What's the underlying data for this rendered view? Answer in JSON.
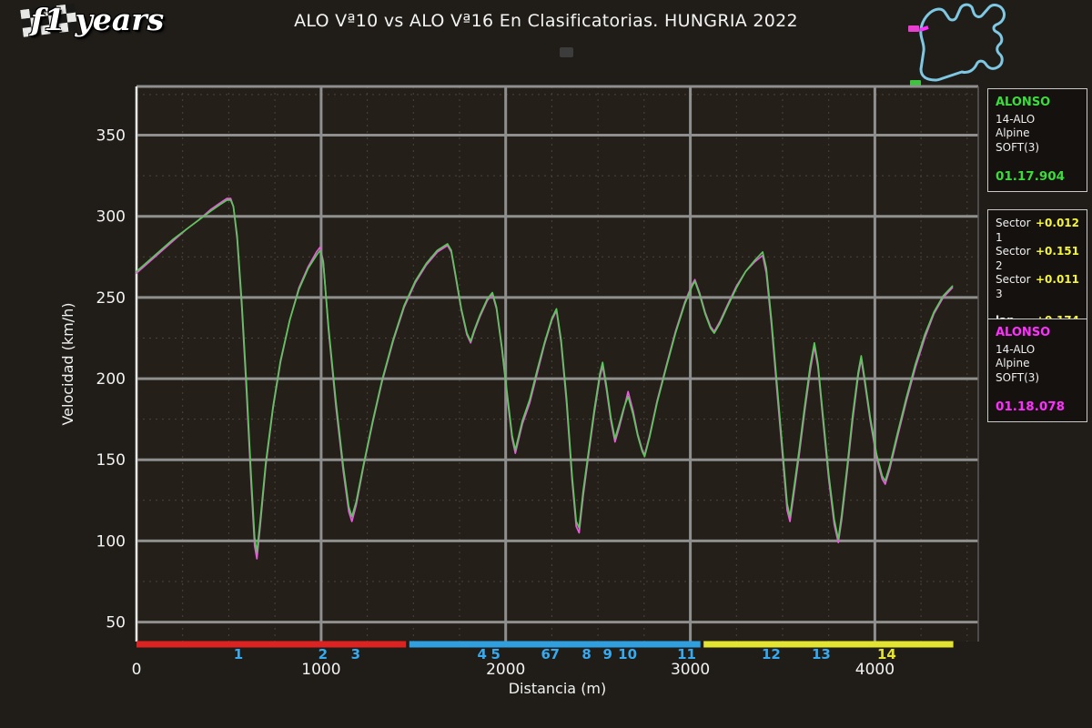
{
  "header": {
    "logo_text": "f1 years",
    "title": "ALO Vª10 vs ALO Vª16 En Clasificatorias. HUNGRIA 2022"
  },
  "track_map": {
    "outline_color": "#7ec8e3",
    "start_marker_color": "#ff30ff",
    "marker_top_color": "#e83fd0",
    "marker_bottom_color": "#3fc43f"
  },
  "panels": {
    "driver1": {
      "name": "ALONSO",
      "number": "14-ALO",
      "team": "Alpine",
      "tyre": "SOFT(3)",
      "time": "01.17.904",
      "color": "#3ddc3d"
    },
    "deltas": {
      "rows": [
        {
          "label": "Sector 1",
          "value": "+0.012"
        },
        {
          "label": "Sector 2",
          "value": "+0.151"
        },
        {
          "label": "Sector 3",
          "value": "+0.011"
        }
      ],
      "lap_label": "lap",
      "lap_value": "+0.174",
      "value_color": "#f5f53a"
    },
    "driver2": {
      "name": "ALONSO",
      "number": "14-ALO",
      "team": "Alpine",
      "tyre": "SOFT(3)",
      "time": "01.18.078",
      "color": "#ff30ff"
    }
  },
  "chart_data": {
    "type": "line",
    "title": "ALO Vª10 vs ALO Vª16 En Clasificatorias. HUNGRIA 2022",
    "xlabel": "Distancia (m)",
    "ylabel": "Velocidad (km/h)",
    "xlim": [
      0,
      4560
    ],
    "ylim": [
      38,
      380
    ],
    "xticks": [
      0,
      1000,
      2000,
      3000,
      4000
    ],
    "yticks": [
      50,
      100,
      150,
      200,
      250,
      300,
      350
    ],
    "minor_x_step": 250,
    "minor_y_step": 25,
    "plot_bg": "#242019",
    "grid_major_color": "#8f8f8f",
    "grid_minor_color": "#49443d",
    "tick_color": "#f2f2f2",
    "spine_color": "#e8e8e8",
    "series": [
      {
        "name": "ALONSO 01.17.904 (SOFT 3)",
        "color": "#57c957",
        "points": [
          [
            0,
            266
          ],
          [
            60,
            272
          ],
          [
            130,
            279
          ],
          [
            200,
            286
          ],
          [
            270,
            292
          ],
          [
            340,
            298
          ],
          [
            400,
            303
          ],
          [
            450,
            307
          ],
          [
            490,
            310
          ],
          [
            510,
            310
          ],
          [
            525,
            306
          ],
          [
            545,
            288
          ],
          [
            570,
            248
          ],
          [
            595,
            198
          ],
          [
            620,
            142
          ],
          [
            640,
            102
          ],
          [
            652,
            93
          ],
          [
            670,
            112
          ],
          [
            700,
            148
          ],
          [
            740,
            183
          ],
          [
            780,
            211
          ],
          [
            830,
            236
          ],
          [
            880,
            255
          ],
          [
            930,
            268
          ],
          [
            975,
            276
          ],
          [
            995,
            279
          ],
          [
            1012,
            271
          ],
          [
            1040,
            232
          ],
          [
            1080,
            186
          ],
          [
            1120,
            146
          ],
          [
            1150,
            121
          ],
          [
            1167,
            115
          ],
          [
            1190,
            124
          ],
          [
            1230,
            147
          ],
          [
            1280,
            174
          ],
          [
            1330,
            199
          ],
          [
            1390,
            224
          ],
          [
            1450,
            245
          ],
          [
            1510,
            260
          ],
          [
            1570,
            271
          ],
          [
            1630,
            279
          ],
          [
            1685,
            283
          ],
          [
            1705,
            279
          ],
          [
            1730,
            263
          ],
          [
            1760,
            243
          ],
          [
            1790,
            228
          ],
          [
            1810,
            223
          ],
          [
            1830,
            230
          ],
          [
            1860,
            239
          ],
          [
            1900,
            249
          ],
          [
            1928,
            253
          ],
          [
            1950,
            244
          ],
          [
            1980,
            219
          ],
          [
            2010,
            189
          ],
          [
            2035,
            165
          ],
          [
            2052,
            156
          ],
          [
            2090,
            174
          ],
          [
            2130,
            187
          ],
          [
            2170,
            205
          ],
          [
            2210,
            222
          ],
          [
            2250,
            237
          ],
          [
            2275,
            243
          ],
          [
            2300,
            224
          ],
          [
            2330,
            188
          ],
          [
            2360,
            140
          ],
          [
            2382,
            112
          ],
          [
            2398,
            108
          ],
          [
            2420,
            131
          ],
          [
            2450,
            156
          ],
          [
            2480,
            181
          ],
          [
            2510,
            203
          ],
          [
            2525,
            210
          ],
          [
            2545,
            196
          ],
          [
            2570,
            176
          ],
          [
            2592,
            163
          ],
          [
            2615,
            172
          ],
          [
            2640,
            182
          ],
          [
            2663,
            189
          ],
          [
            2690,
            178
          ],
          [
            2715,
            165
          ],
          [
            2740,
            155
          ],
          [
            2753,
            152
          ],
          [
            2780,
            164
          ],
          [
            2820,
            185
          ],
          [
            2870,
            207
          ],
          [
            2920,
            228
          ],
          [
            2970,
            246
          ],
          [
            3010,
            257
          ],
          [
            3025,
            260
          ],
          [
            3050,
            252
          ],
          [
            3080,
            240
          ],
          [
            3110,
            231
          ],
          [
            3130,
            228
          ],
          [
            3160,
            234
          ],
          [
            3200,
            244
          ],
          [
            3250,
            256
          ],
          [
            3300,
            266
          ],
          [
            3350,
            273
          ],
          [
            3392,
            278
          ],
          [
            3412,
            268
          ],
          [
            3440,
            236
          ],
          [
            3470,
            196
          ],
          [
            3500,
            156
          ],
          [
            3525,
            123
          ],
          [
            3540,
            115
          ],
          [
            3560,
            131
          ],
          [
            3590,
            156
          ],
          [
            3620,
            183
          ],
          [
            3650,
            208
          ],
          [
            3672,
            222
          ],
          [
            3692,
            209
          ],
          [
            3720,
            176
          ],
          [
            3750,
            141
          ],
          [
            3780,
            113
          ],
          [
            3802,
            101
          ],
          [
            3820,
            116
          ],
          [
            3850,
            146
          ],
          [
            3880,
            178
          ],
          [
            3910,
            204
          ],
          [
            3926,
            214
          ],
          [
            3945,
            200
          ],
          [
            3975,
            176
          ],
          [
            4010,
            153
          ],
          [
            4040,
            140
          ],
          [
            4056,
            137
          ],
          [
            4080,
            146
          ],
          [
            4120,
            165
          ],
          [
            4170,
            188
          ],
          [
            4220,
            209
          ],
          [
            4270,
            227
          ],
          [
            4320,
            241
          ],
          [
            4370,
            251
          ],
          [
            4420,
            257
          ]
        ]
      },
      {
        "name": "ALONSO 01.18.078 (SOFT 3)",
        "color": "#ee58e2",
        "points": [
          [
            0,
            265
          ],
          [
            60,
            271
          ],
          [
            130,
            278
          ],
          [
            200,
            285
          ],
          [
            270,
            292
          ],
          [
            340,
            298
          ],
          [
            400,
            304
          ],
          [
            450,
            308
          ],
          [
            490,
            311
          ],
          [
            510,
            311
          ],
          [
            525,
            306
          ],
          [
            545,
            286
          ],
          [
            570,
            245
          ],
          [
            595,
            194
          ],
          [
            620,
            137
          ],
          [
            640,
            97
          ],
          [
            652,
            89
          ],
          [
            670,
            109
          ],
          [
            700,
            146
          ],
          [
            740,
            182
          ],
          [
            780,
            210
          ],
          [
            830,
            236
          ],
          [
            880,
            256
          ],
          [
            930,
            269
          ],
          [
            975,
            278
          ],
          [
            995,
            281
          ],
          [
            1012,
            272
          ],
          [
            1040,
            230
          ],
          [
            1080,
            183
          ],
          [
            1120,
            143
          ],
          [
            1150,
            118
          ],
          [
            1167,
            112
          ],
          [
            1190,
            122
          ],
          [
            1230,
            146
          ],
          [
            1280,
            173
          ],
          [
            1330,
            198
          ],
          [
            1390,
            223
          ],
          [
            1450,
            244
          ],
          [
            1510,
            259
          ],
          [
            1570,
            270
          ],
          [
            1630,
            278
          ],
          [
            1685,
            282
          ],
          [
            1705,
            278
          ],
          [
            1730,
            262
          ],
          [
            1760,
            242
          ],
          [
            1790,
            227
          ],
          [
            1810,
            222
          ],
          [
            1830,
            229
          ],
          [
            1860,
            238
          ],
          [
            1900,
            248
          ],
          [
            1928,
            252
          ],
          [
            1950,
            243
          ],
          [
            1980,
            218
          ],
          [
            2010,
            187
          ],
          [
            2035,
            163
          ],
          [
            2052,
            154
          ],
          [
            2090,
            172
          ],
          [
            2130,
            185
          ],
          [
            2170,
            203
          ],
          [
            2210,
            221
          ],
          [
            2250,
            236
          ],
          [
            2275,
            242
          ],
          [
            2300,
            222
          ],
          [
            2330,
            185
          ],
          [
            2360,
            137
          ],
          [
            2382,
            109
          ],
          [
            2398,
            105
          ],
          [
            2420,
            128
          ],
          [
            2450,
            154
          ],
          [
            2480,
            179
          ],
          [
            2510,
            201
          ],
          [
            2525,
            208
          ],
          [
            2545,
            194
          ],
          [
            2570,
            174
          ],
          [
            2592,
            161
          ],
          [
            2615,
            170
          ],
          [
            2640,
            181
          ],
          [
            2663,
            192
          ],
          [
            2690,
            180
          ],
          [
            2715,
            166
          ],
          [
            2740,
            156
          ],
          [
            2753,
            153
          ],
          [
            2780,
            165
          ],
          [
            2820,
            186
          ],
          [
            2870,
            208
          ],
          [
            2920,
            229
          ],
          [
            2970,
            247
          ],
          [
            3010,
            258
          ],
          [
            3025,
            261
          ],
          [
            3050,
            253
          ],
          [
            3080,
            241
          ],
          [
            3110,
            232
          ],
          [
            3130,
            229
          ],
          [
            3160,
            235
          ],
          [
            3200,
            245
          ],
          [
            3250,
            257
          ],
          [
            3300,
            266
          ],
          [
            3350,
            272
          ],
          [
            3392,
            276
          ],
          [
            3412,
            265
          ],
          [
            3440,
            233
          ],
          [
            3470,
            192
          ],
          [
            3500,
            152
          ],
          [
            3525,
            119
          ],
          [
            3540,
            112
          ],
          [
            3560,
            128
          ],
          [
            3590,
            153
          ],
          [
            3620,
            180
          ],
          [
            3650,
            205
          ],
          [
            3672,
            220
          ],
          [
            3692,
            207
          ],
          [
            3720,
            173
          ],
          [
            3750,
            138
          ],
          [
            3780,
            110
          ],
          [
            3802,
            99
          ],
          [
            3820,
            113
          ],
          [
            3850,
            143
          ],
          [
            3880,
            175
          ],
          [
            3910,
            202
          ],
          [
            3926,
            212
          ],
          [
            3945,
            198
          ],
          [
            3975,
            174
          ],
          [
            4010,
            151
          ],
          [
            4040,
            138
          ],
          [
            4056,
            135
          ],
          [
            4080,
            144
          ],
          [
            4120,
            163
          ],
          [
            4170,
            186
          ],
          [
            4220,
            207
          ],
          [
            4270,
            225
          ],
          [
            4320,
            240
          ],
          [
            4370,
            250
          ],
          [
            4420,
            256
          ]
        ]
      }
    ],
    "sectors": [
      {
        "label": "Sector 1",
        "color": "#dd2222",
        "from": 0,
        "to": 1460
      },
      {
        "label": "Sector 2",
        "color": "#2f9fe0",
        "from": 1478,
        "to": 3055
      },
      {
        "label": "Sector 3",
        "color": "#e3e332",
        "from": 3072,
        "to": 4425
      }
    ],
    "turns": [
      {
        "label": "1",
        "x": 552,
        "color": "#35aaf0"
      },
      {
        "label": "2",
        "x": 1010,
        "color": "#35aaf0"
      },
      {
        "label": "3",
        "x": 1187,
        "color": "#35aaf0"
      },
      {
        "label": "4",
        "x": 1872,
        "color": "#35aaf0"
      },
      {
        "label": "5",
        "x": 1946,
        "color": "#35aaf0"
      },
      {
        "label": "6",
        "x": 2217,
        "color": "#35aaf0"
      },
      {
        "label": "7",
        "x": 2266,
        "color": "#35aaf0"
      },
      {
        "label": "8",
        "x": 2438,
        "color": "#35aaf0"
      },
      {
        "label": "9",
        "x": 2552,
        "color": "#35aaf0"
      },
      {
        "label": "10",
        "x": 2660,
        "color": "#35aaf0"
      },
      {
        "label": "11",
        "x": 2980,
        "color": "#35aaf0"
      },
      {
        "label": "12",
        "x": 3438,
        "color": "#35aaf0"
      },
      {
        "label": "13",
        "x": 3709,
        "color": "#35aaf0"
      },
      {
        "label": "14",
        "x": 4064,
        "color": "#e3e332"
      }
    ]
  }
}
